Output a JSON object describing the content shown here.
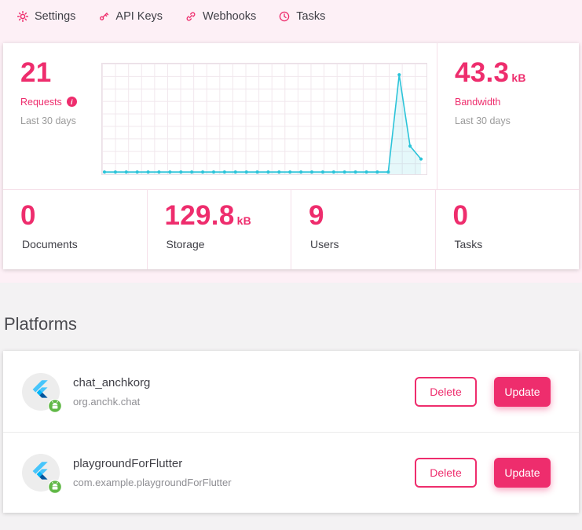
{
  "colors": {
    "accent": "#ee2d6d",
    "chart_line": "#2bc4d9"
  },
  "nav": {
    "items": [
      {
        "label": "Settings"
      },
      {
        "label": "API Keys"
      },
      {
        "label": "Webhooks"
      },
      {
        "label": "Tasks"
      }
    ]
  },
  "stats": {
    "requests": {
      "value": "21",
      "label": "Requests",
      "period": "Last 30 days"
    },
    "bandwidth": {
      "value": "43.3",
      "unit": "kB",
      "label": "Bandwidth",
      "period": "Last 30 days"
    },
    "documents": {
      "value": "0",
      "label": "Documents"
    },
    "storage": {
      "value": "129.8",
      "unit": "kB",
      "label": "Storage"
    },
    "users": {
      "value": "9",
      "label": "Users"
    },
    "tasks": {
      "value": "0",
      "label": "Tasks"
    }
  },
  "chart_data": {
    "type": "line",
    "title": "Requests - Last 30 days",
    "x": [
      1,
      2,
      3,
      4,
      5,
      6,
      7,
      8,
      9,
      10,
      11,
      12,
      13,
      14,
      15,
      16,
      17,
      18,
      19,
      20,
      21,
      22,
      23,
      24,
      25,
      26,
      27,
      28,
      29,
      30
    ],
    "values": [
      0,
      0,
      0,
      0,
      0,
      0,
      0,
      0,
      0,
      0,
      0,
      0,
      0,
      0,
      0,
      0,
      0,
      0,
      0,
      0,
      0,
      0,
      0,
      0,
      0,
      0,
      0,
      15,
      4,
      2
    ],
    "ylim": [
      0,
      16
    ],
    "grid": true,
    "legend": "none",
    "line_color": "#2bc4d9",
    "fill_color": "rgba(43,196,217,0.12)"
  },
  "platforms": {
    "title": "Platforms",
    "items": [
      {
        "name": "chat_anchkorg",
        "package_id": "org.anchk.chat",
        "platform_icon": "flutter-icon",
        "os_badge": "android-badge",
        "delete_label": "Delete",
        "update_label": "Update"
      },
      {
        "name": "playgroundForFlutter",
        "package_id": "com.example.playgroundForFlutter",
        "platform_icon": "flutter-icon",
        "os_badge": "android-badge",
        "delete_label": "Delete",
        "update_label": "Update"
      }
    ]
  }
}
